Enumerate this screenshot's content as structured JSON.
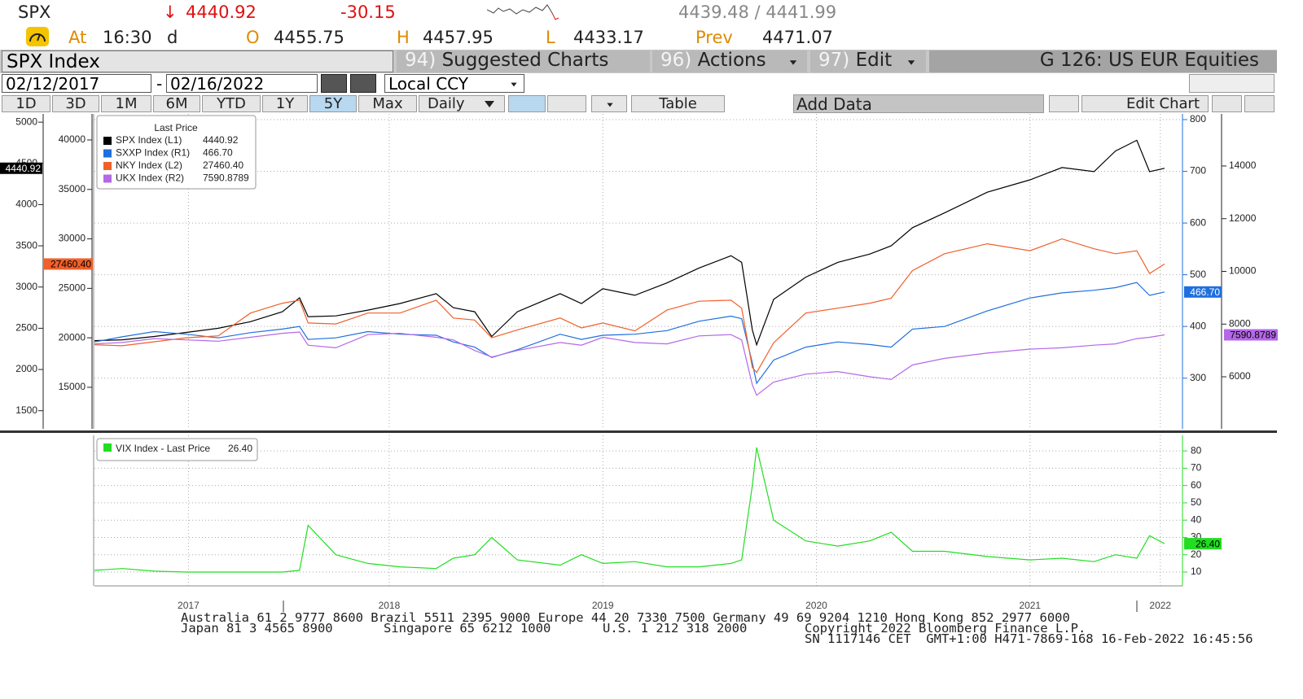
{
  "header": {
    "ticker": "SPX",
    "arrow": "↓",
    "last": "4440.92",
    "change": "-30.15",
    "bid_ask": "4439.48 / 4441.99",
    "at_label": "At",
    "time": "16:30",
    "time_flag": "d",
    "open_label": "O",
    "open": "4455.75",
    "high_label": "H",
    "high": "4457.95",
    "low_label": "L",
    "low": "4433.17",
    "prev_label": "Prev",
    "prev": "4471.07"
  },
  "menubar": {
    "security": "SPX Index",
    "suggested_num": "94)",
    "suggested": "Suggested Charts",
    "actions_num": "96)",
    "actions": "Actions",
    "edit_num": "97)",
    "edit": "Edit",
    "group": "G 126: US EUR Equities"
  },
  "range": {
    "start": "02/12/2017",
    "dash": "-",
    "end": "02/16/2022",
    "currency": "Local CCY"
  },
  "toolbar": {
    "periods": [
      "1D",
      "3D",
      "1M",
      "6M",
      "YTD",
      "1Y",
      "5Y",
      "Max"
    ],
    "active": "5Y",
    "frequency": "Daily",
    "table": "Table",
    "add_data": "Add Data",
    "edit_chart": "Edit Chart"
  },
  "chart_data": [
    {
      "type": "line",
      "legend_title": "Last Price",
      "x": [
        2017.12,
        2017.25,
        2017.4,
        2017.55,
        2017.7,
        2017.85,
        2018.0,
        2018.08,
        2018.12,
        2018.25,
        2018.4,
        2018.55,
        2018.72,
        2018.8,
        2018.9,
        2018.98,
        2019.1,
        2019.3,
        2019.4,
        2019.5,
        2019.65,
        2019.8,
        2019.95,
        2020.1,
        2020.15,
        2020.2,
        2020.22,
        2020.3,
        2020.45,
        2020.6,
        2020.75,
        2020.85,
        2020.95,
        2021.1,
        2021.3,
        2021.5,
        2021.65,
        2021.8,
        2021.9,
        2022.0,
        2022.06,
        2022.13
      ],
      "xlim": [
        2017.12,
        2022.13
      ],
      "ylim": [
        1280,
        5100
      ],
      "yticks": [
        1500,
        2000,
        2500,
        3000,
        3500,
        4000,
        4500,
        5000
      ],
      "y2lim": [
        202,
        811
      ],
      "y2ticks": [
        300,
        400,
        500,
        600,
        700,
        800
      ],
      "y3lim": [
        10800,
        42630
      ],
      "y3ticks": [
        15000,
        20000,
        25000,
        30000,
        35000,
        40000
      ],
      "y4lim": [
        4025,
        15975
      ],
      "y4ticks": [
        6000,
        8000,
        10000,
        12000,
        14000
      ],
      "grid": true,
      "series": [
        {
          "name": "SPX Index (L1)",
          "color": "#000000",
          "axis": "y",
          "last_price": "4440.92",
          "values": [
            2350,
            2360,
            2400,
            2450,
            2500,
            2580,
            2700,
            2870,
            2640,
            2650,
            2720,
            2800,
            2920,
            2750,
            2700,
            2400,
            2700,
            2920,
            2800,
            2980,
            2900,
            3050,
            3230,
            3380,
            3300,
            2480,
            2300,
            2850,
            3120,
            3300,
            3400,
            3500,
            3720,
            3900,
            4150,
            4300,
            4450,
            4400,
            4650,
            4780,
            4400,
            4440.92
          ]
        },
        {
          "name": "SXXP Index (R1)",
          "color": "#1f6fde",
          "axis": "y2",
          "last_price": "466.70",
          "values": [
            370,
            380,
            390,
            385,
            378,
            388,
            395,
            400,
            375,
            378,
            390,
            385,
            383,
            370,
            360,
            340,
            355,
            385,
            375,
            383,
            385,
            392,
            410,
            420,
            415,
            330,
            290,
            335,
            360,
            370,
            365,
            360,
            395,
            400,
            430,
            455,
            465,
            470,
            475,
            485,
            460,
            466.7
          ]
        },
        {
          "name": "NKY Index (L2)",
          "color": "#f0602a",
          "axis": "y3",
          "last_price": "27460.40",
          "values": [
            19300,
            19200,
            19600,
            20000,
            20200,
            22500,
            23500,
            23800,
            21500,
            21400,
            22500,
            22500,
            23800,
            22000,
            21800,
            20000,
            20800,
            22000,
            21000,
            21500,
            20700,
            22800,
            23700,
            23800,
            23000,
            17000,
            16500,
            19500,
            22500,
            23000,
            23500,
            24000,
            26800,
            28500,
            29500,
            28800,
            30000,
            29000,
            28500,
            28800,
            26500,
            27460.4
          ]
        },
        {
          "name": "UKX Index (R2)",
          "color": "#b468e8",
          "axis": "y4",
          "last_price": "7590.8789",
          "values": [
            7250,
            7300,
            7450,
            7400,
            7350,
            7500,
            7650,
            7700,
            7200,
            7100,
            7600,
            7650,
            7500,
            7400,
            7000,
            6750,
            7000,
            7300,
            7200,
            7500,
            7300,
            7250,
            7550,
            7600,
            7400,
            5700,
            5300,
            5800,
            6100,
            6200,
            6000,
            5900,
            6450,
            6700,
            6900,
            7050,
            7100,
            7200,
            7250,
            7450,
            7500,
            7590.8789
          ]
        }
      ]
    },
    {
      "type": "line",
      "x": [
        2017.12,
        2017.25,
        2017.4,
        2017.55,
        2017.7,
        2017.85,
        2018.0,
        2018.08,
        2018.12,
        2018.25,
        2018.4,
        2018.55,
        2018.72,
        2018.8,
        2018.9,
        2018.98,
        2019.1,
        2019.3,
        2019.4,
        2019.5,
        2019.65,
        2019.8,
        2019.95,
        2020.1,
        2020.15,
        2020.2,
        2020.22,
        2020.3,
        2020.45,
        2020.6,
        2020.75,
        2020.85,
        2020.95,
        2021.1,
        2021.3,
        2021.5,
        2021.65,
        2021.8,
        2021.9,
        2022.0,
        2022.06,
        2022.13
      ],
      "xlim": [
        2017.12,
        2022.13
      ],
      "xticks": [
        {
          "value": 2017.56,
          "label": "2017"
        },
        {
          "value": 2018.5,
          "label": "2018"
        },
        {
          "value": 2019.5,
          "label": "2019"
        },
        {
          "value": 2020.5,
          "label": "2020"
        },
        {
          "value": 2021.5,
          "label": "2021"
        },
        {
          "value": 2022.11,
          "label": "2022"
        }
      ],
      "ylim": [
        2,
        89
      ],
      "yticks": [
        10,
        20,
        30,
        40,
        50,
        60,
        70,
        80
      ],
      "grid": true,
      "series": [
        {
          "name": "VIX Index - Last Price",
          "color": "#22dd22",
          "axis": "y",
          "last_price": "26.40",
          "values": [
            11,
            12,
            10.5,
            10,
            10,
            10,
            10,
            11,
            37,
            20,
            15,
            13,
            12,
            18,
            20,
            30,
            17,
            14,
            20,
            15,
            16,
            13,
            13,
            15,
            17,
            60,
            82,
            40,
            28,
            25,
            28,
            33,
            22,
            22,
            19,
            17,
            18,
            16,
            20,
            18,
            31,
            26.4
          ]
        }
      ]
    }
  ],
  "footer": {
    "line1": "Australia 61 2 9777 8600 Brazil 5511 2395 9000 Europe 44 20 7330 7500 Germany 49 69 9204 1210 Hong Kong 852 2977 6000",
    "japan": "Japan 81 3 4565 8900",
    "singapore": "Singapore 65 6212 1000",
    "us": "U.S. 1 212 318 2000",
    "copyright": "Copyright 2022 Bloomberg Finance L.P.",
    "session": "SN 1117146 CET  GMT+1:00 H471-7869-168 16-Feb-2022 16:45:56"
  }
}
